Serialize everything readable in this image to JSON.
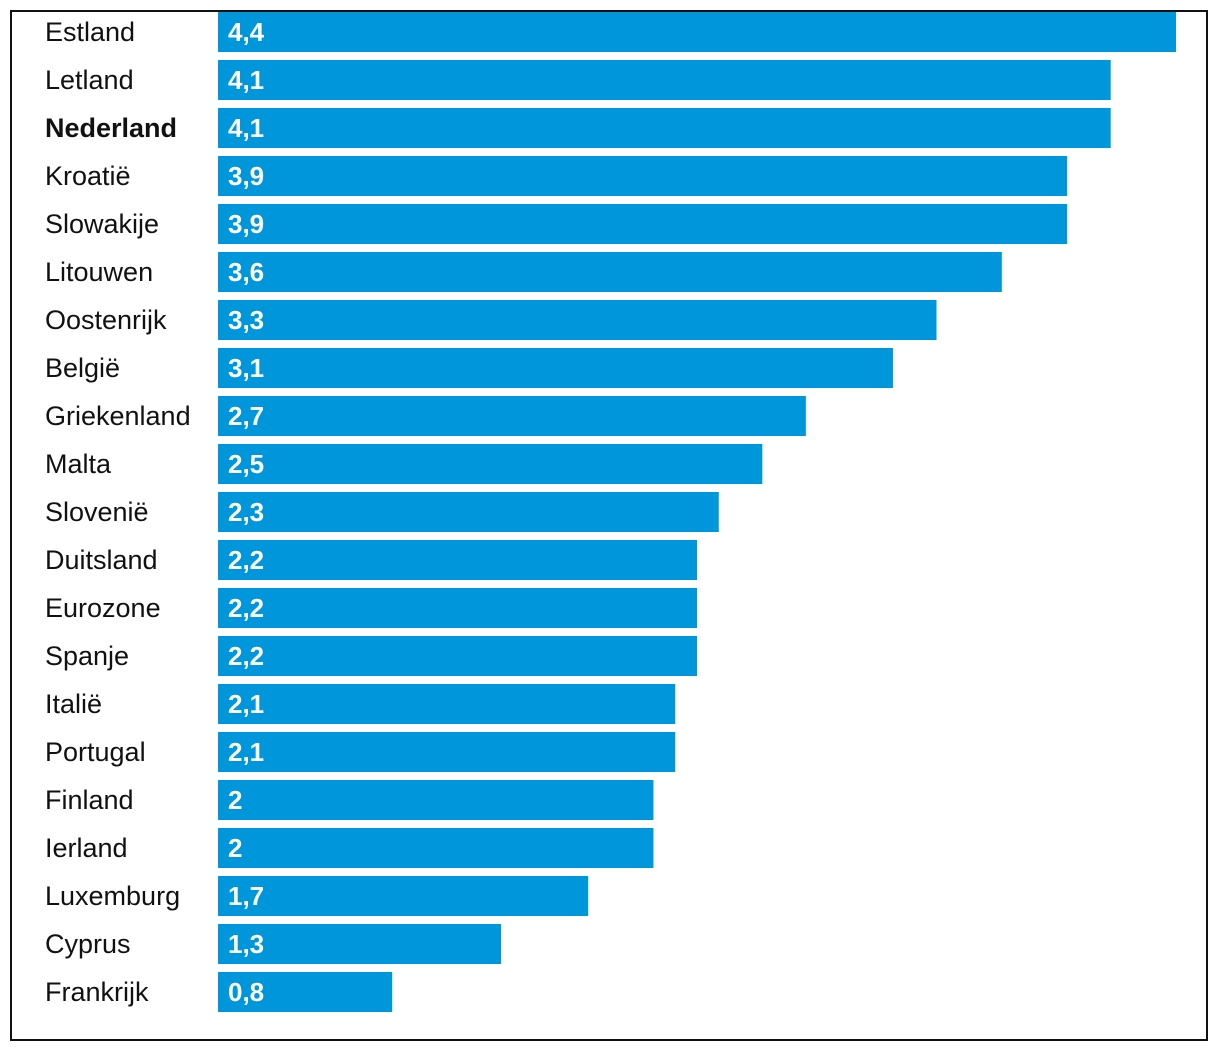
{
  "chart_data": {
    "type": "bar",
    "orientation": "horizontal",
    "categories": [
      "Estland",
      "Letland",
      "Nederland",
      "Kroatië",
      "Slowakije",
      "Litouwen",
      "Oostenrijk",
      "België",
      "Griekenland",
      "Malta",
      "Slovenië",
      "Duitsland",
      "Eurozone",
      "Spanje",
      "Italië",
      "Portugal",
      "Finland",
      "Ierland",
      "Luxemburg",
      "Cyprus",
      "Frankrijk"
    ],
    "values": [
      4.4,
      4.1,
      4.1,
      3.9,
      3.9,
      3.6,
      3.3,
      3.1,
      2.7,
      2.5,
      2.3,
      2.2,
      2.2,
      2.2,
      2.1,
      2.1,
      2,
      2,
      1.7,
      1.3,
      0.8
    ],
    "value_labels": [
      "4,4",
      "4,1",
      "4,1",
      "3,9",
      "3,9",
      "3,6",
      "3,3",
      "3,1",
      "2,7",
      "2,5",
      "2,3",
      "2,2",
      "2,2",
      "2,2",
      "2,1",
      "2,1",
      "2",
      "2",
      "1,7",
      "1,3",
      "0,8"
    ],
    "highlight": "Nederland",
    "bar_color": "#0096DB",
    "value_label_color": "#ffffff",
    "title": "",
    "xlabel": "",
    "ylabel": "",
    "xlim": [
      0,
      4.4
    ],
    "grid": false,
    "legend": "none"
  }
}
